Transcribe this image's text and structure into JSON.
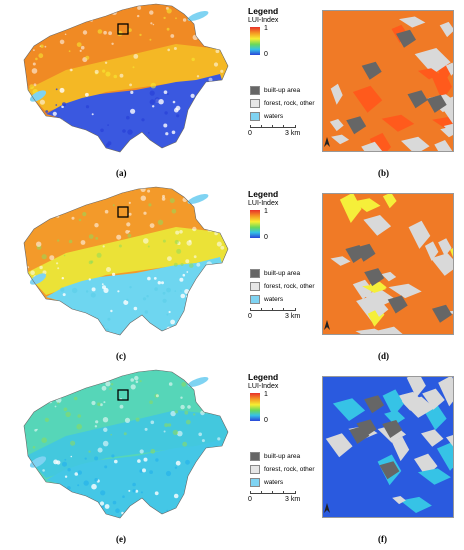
{
  "legend": {
    "title": "Legend",
    "index_label": "LUI-Index",
    "max_label": "1",
    "min_label": "0",
    "items": [
      {
        "label": "built-up area",
        "color": "#666666"
      },
      {
        "label": "forest, rock, other",
        "color": "#e6e6e6"
      },
      {
        "label": "waters",
        "color": "#7fd3f2"
      }
    ],
    "scale_start": "0",
    "scale_end": "3 km"
  },
  "color_ramp": [
    "#e8302a",
    "#f59a23",
    "#f7ee33",
    "#6ad85a",
    "#36c3e6",
    "#2a44d8"
  ],
  "panels": [
    {
      "map_caption": "(a)",
      "detail_caption": "(b)",
      "palette": {
        "high": "#f08a24",
        "mid": "#f5c026",
        "low": "#2a44d8",
        "alps": "#3a58e0",
        "plateau_accent": "#f7ee33",
        "detail_bg": "#f07a26",
        "detail_accent": "#ff5a1c"
      }
    },
    {
      "map_caption": "(c)",
      "detail_caption": "(d)",
      "palette": {
        "high": "#f39a2a",
        "mid": "#e9ee3a",
        "low": "#5fd0ea",
        "alps": "#6ed6f0",
        "plateau_accent": "#8fdc5a",
        "detail_bg": "#f07a26",
        "detail_accent": "#f5ef3a"
      }
    },
    {
      "map_caption": "(e)",
      "detail_caption": "(f)",
      "palette": {
        "high": "#56d6b8",
        "mid": "#3fc6e4",
        "low": "#2bb5ea",
        "alps": "#44c7e6",
        "plateau_accent": "#8fdc5a",
        "detail_bg": "#2a5adf",
        "detail_accent": "#36c3e6"
      }
    }
  ]
}
